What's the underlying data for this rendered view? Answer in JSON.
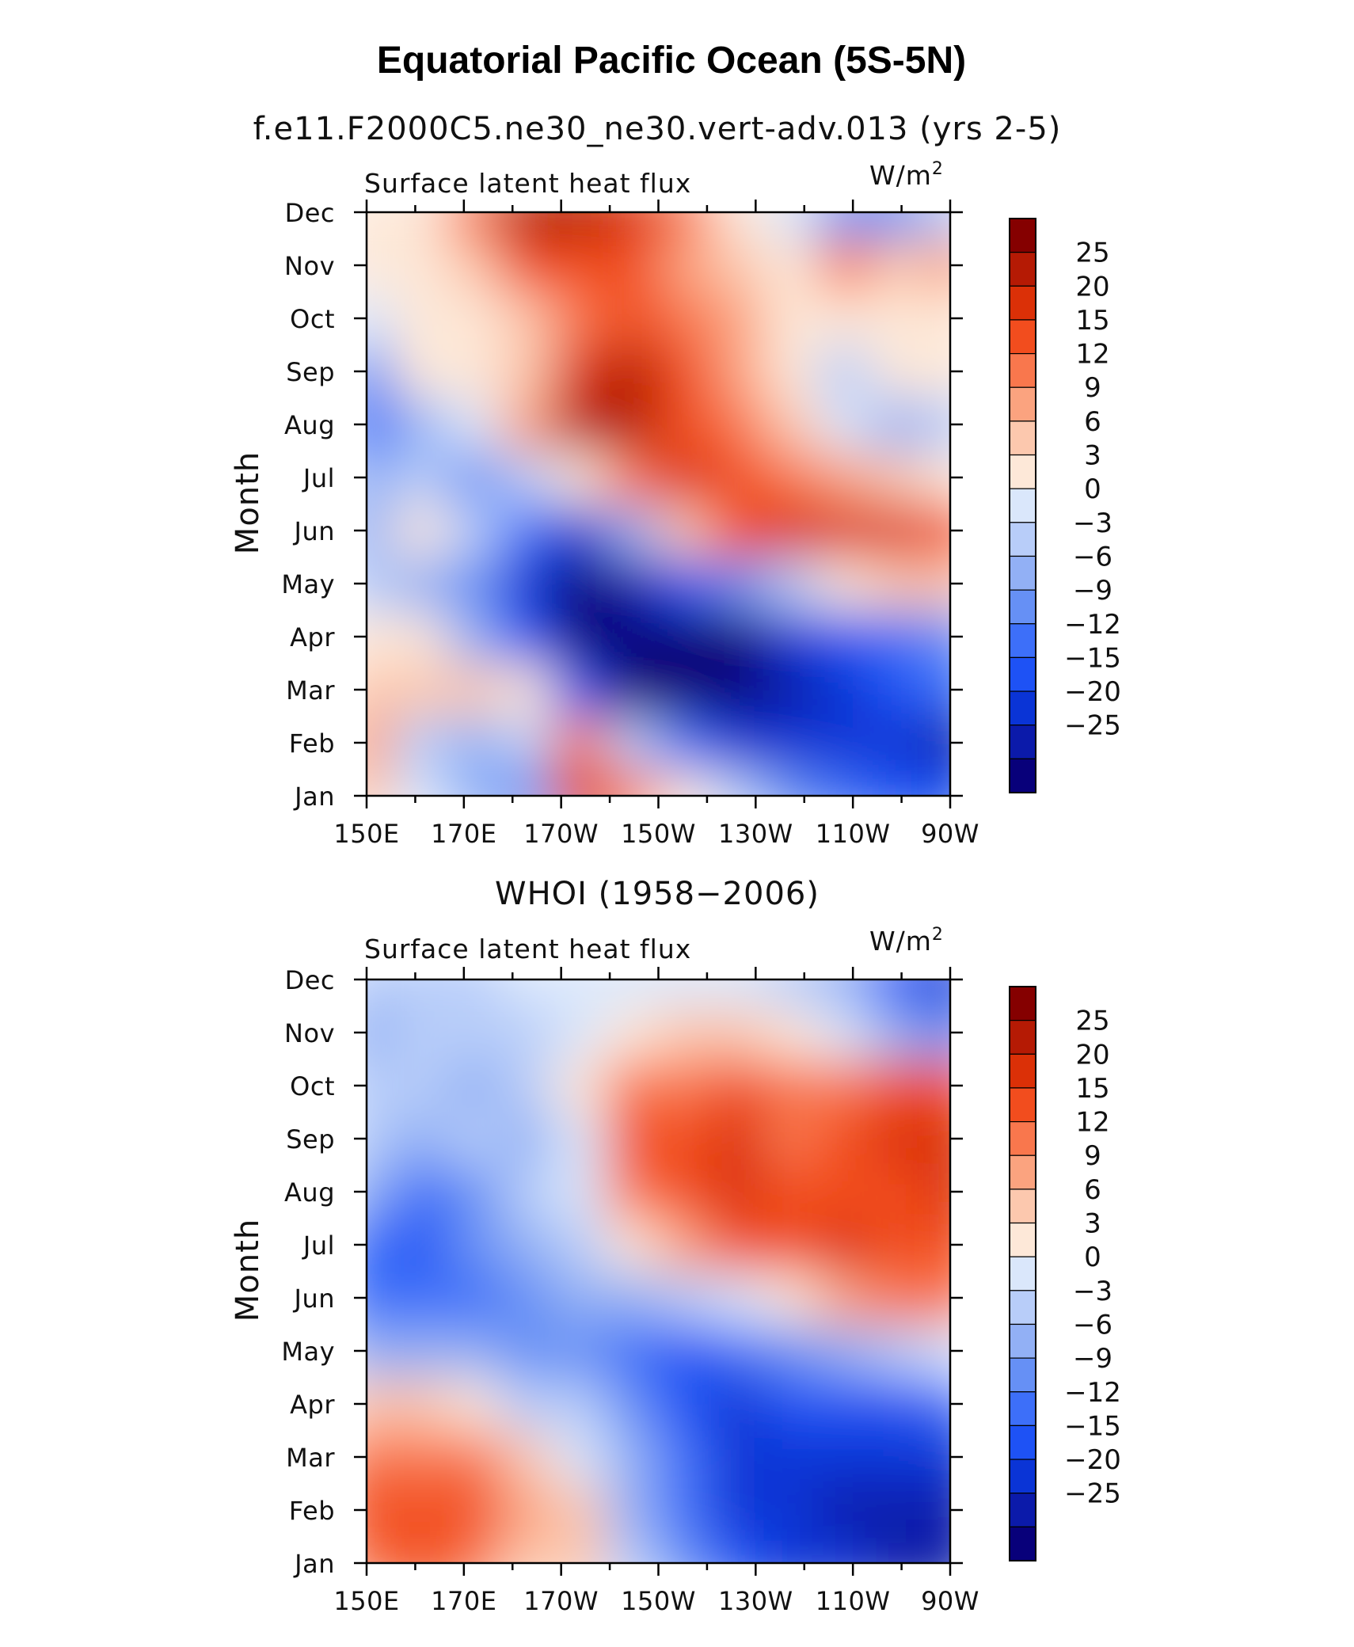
{
  "title": "Equatorial Pacific Ocean (5S-5N)",
  "chart_data": [
    {
      "type": "heatmap",
      "run_title": "f.e11.F2000C5.ne30_ne30.vert-adv.013 (yrs 2-5)",
      "subtitle_left": "Surface latent heat flux",
      "units_base": "W/m",
      "units_sup": "2",
      "ylabel": "Month",
      "x_labels": [
        "150E",
        "170E",
        "170W",
        "150W",
        "130W",
        "110W",
        "90W"
      ],
      "y_labels": [
        "Jan",
        "Feb",
        "Mar",
        "Apr",
        "May",
        "Jun",
        "Jul",
        "Aug",
        "Sep",
        "Oct",
        "Nov",
        "Dec"
      ],
      "levels": [
        "25",
        "20",
        "15",
        "12",
        "9",
        "6",
        "3",
        "0",
        "−3",
        "−6",
        "−9",
        "−12",
        "−15",
        "−20",
        "−25"
      ],
      "values": [
        [
          6,
          2,
          -5,
          -9,
          23,
          14,
          4,
          -3,
          -7,
          -12,
          -14,
          -15
        ],
        [
          10,
          -3,
          -6,
          -3,
          13,
          -3,
          -12,
          -18,
          -20,
          -17,
          -19,
          -22
        ],
        [
          8,
          7,
          6,
          4,
          -14,
          -28,
          -30,
          -30,
          -25,
          -18,
          -13,
          -12
        ],
        [
          4,
          3,
          -5,
          -13,
          -28,
          -30,
          -30,
          -29,
          -20,
          -14,
          -10,
          -9
        ],
        [
          -2,
          -5,
          -9,
          -18,
          -27,
          -22,
          -15,
          -8,
          -1,
          3,
          6,
          7
        ],
        [
          -4,
          3,
          -3,
          -12,
          -16,
          -5,
          8,
          18,
          22,
          21,
          24,
          15
        ],
        [
          -6,
          -3,
          -7,
          -2,
          3,
          14,
          20,
          18,
          13,
          10,
          8,
          5
        ],
        [
          -12,
          -4,
          2,
          11,
          27,
          27,
          18,
          12,
          6,
          0,
          -4,
          -2
        ],
        [
          -8,
          5,
          5,
          6,
          21,
          26,
          17,
          11,
          4,
          -2,
          3,
          5
        ],
        [
          1,
          3,
          3,
          8,
          14,
          18,
          14,
          9,
          3,
          5,
          5,
          5
        ],
        [
          5,
          3,
          8,
          19,
          18,
          16,
          9,
          8,
          5,
          12,
          6,
          10
        ],
        [
          4,
          4,
          13,
          25,
          27,
          20,
          12,
          5,
          2,
          -7,
          -7,
          -3
        ]
      ]
    },
    {
      "type": "heatmap",
      "run_title": "WHOI (1958−2006)",
      "subtitle_left": "Surface latent heat flux",
      "units_base": "W/m",
      "units_sup": "2",
      "ylabel": "Month",
      "x_labels": [
        "150E",
        "170E",
        "170W",
        "150W",
        "130W",
        "110W",
        "90W"
      ],
      "y_labels": [
        "Jan",
        "Feb",
        "Mar",
        "Apr",
        "May",
        "Jun",
        "Jul",
        "Aug",
        "Sep",
        "Oct",
        "Nov",
        "Dec"
      ],
      "levels": [
        "25",
        "20",
        "15",
        "12",
        "9",
        "6",
        "3",
        "0",
        "−3",
        "−6",
        "−9",
        "−12",
        "−15",
        "−20",
        "−25"
      ],
      "values": [
        [
          14,
          16,
          14,
          8,
          6,
          -2,
          -8,
          -15,
          -18,
          -20,
          -22,
          -24
        ],
        [
          16,
          18,
          17,
          10,
          6,
          -4,
          -10,
          -16,
          -19,
          -21,
          -22,
          -21
        ],
        [
          12,
          14,
          12,
          6,
          2,
          -6,
          -12,
          -16,
          -18,
          -19,
          -18,
          -16
        ],
        [
          6,
          6,
          3,
          -1,
          -3,
          -8,
          -13,
          -16,
          -15,
          -14,
          -13,
          -11
        ],
        [
          -5,
          -4,
          -6,
          -7,
          -8,
          -11,
          -14,
          -11,
          -7,
          -4,
          -2,
          0
        ],
        [
          -10,
          -12,
          -12,
          -9,
          -5,
          -4,
          -3,
          0,
          4,
          9,
          12,
          12
        ],
        [
          -10,
          -14,
          -8,
          -5,
          -2,
          3,
          9,
          15,
          18,
          20,
          19,
          18
        ],
        [
          -6,
          -10,
          -7,
          -3,
          0,
          13,
          18,
          20,
          15,
          17,
          19,
          20
        ],
        [
          -3,
          -5,
          -3,
          -4,
          2,
          17,
          18,
          21,
          14,
          15,
          22,
          24
        ],
        [
          -2,
          -3,
          -4,
          -3,
          3,
          12,
          14,
          15,
          12,
          13,
          15,
          15
        ],
        [
          -4,
          -3,
          -3,
          -1,
          1,
          5,
          6,
          6,
          4,
          0,
          -5,
          -8
        ],
        [
          -2,
          -1,
          -1,
          0,
          1,
          2,
          2,
          1,
          -2,
          -6,
          -13,
          -17
        ]
      ]
    }
  ]
}
